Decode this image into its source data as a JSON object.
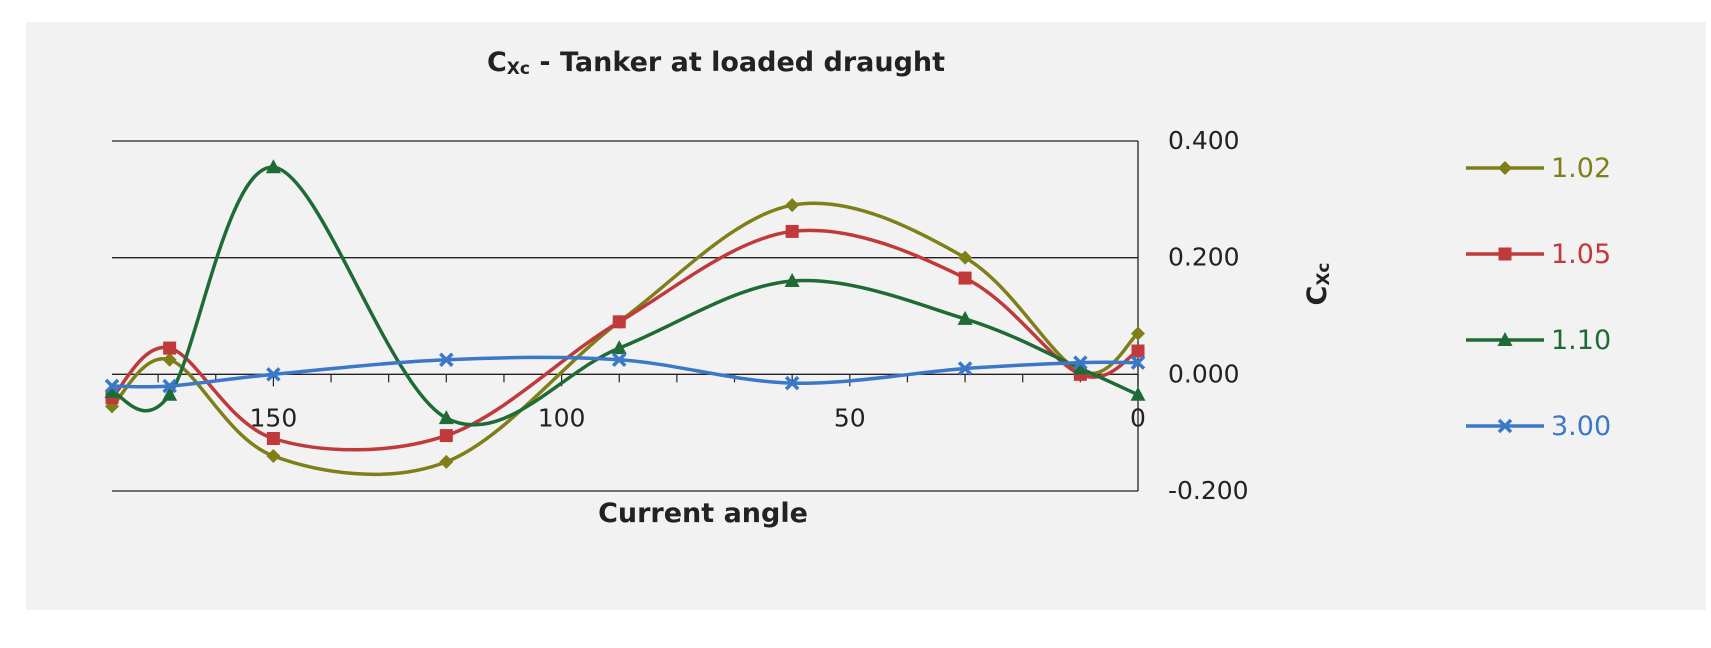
{
  "chart_data": {
    "type": "line",
    "title_main": "C",
    "title_sub": "Xc",
    "title_rest": " - Tanker at loaded draught",
    "xlabel": "Current angle",
    "ylabel_main": "C",
    "ylabel_sub": "Xc",
    "x_reversed": true,
    "xlim": [
      0,
      178
    ],
    "ylim": [
      -0.2,
      0.4
    ],
    "x_ticks": [
      150,
      100,
      50,
      0
    ],
    "x_tick_labels": [
      "150",
      "100",
      "50",
      "0"
    ],
    "y_ticks": [
      0.4,
      0.2,
      0.0,
      -0.2
    ],
    "y_tick_labels": [
      "0.400",
      "0.200",
      "0.000",
      "-0.200"
    ],
    "grid": true,
    "legend_position": "right",
    "x": [
      178,
      168,
      150,
      120,
      90,
      60,
      30,
      10,
      0
    ],
    "series": [
      {
        "name": "1.02",
        "color": "#7f7f1a",
        "marker": "diamond",
        "values": [
          -0.055,
          0.025,
          -0.14,
          -0.15,
          0.09,
          0.29,
          0.2,
          0.005,
          0.07
        ]
      },
      {
        "name": "1.05",
        "color": "#c0393b",
        "marker": "square",
        "values": [
          -0.04,
          0.045,
          -0.11,
          -0.105,
          0.09,
          0.245,
          0.165,
          0.0,
          0.04
        ]
      },
      {
        "name": "1.10",
        "color": "#1e6b35",
        "marker": "triangle",
        "values": [
          -0.03,
          -0.035,
          0.355,
          -0.075,
          0.045,
          0.16,
          0.095,
          0.01,
          -0.035
        ]
      },
      {
        "name": "3.00",
        "color": "#3b78c8",
        "marker": "x",
        "values": [
          -0.02,
          -0.02,
          0.0,
          0.025,
          0.025,
          -0.015,
          0.01,
          0.02,
          0.02
        ]
      }
    ]
  }
}
